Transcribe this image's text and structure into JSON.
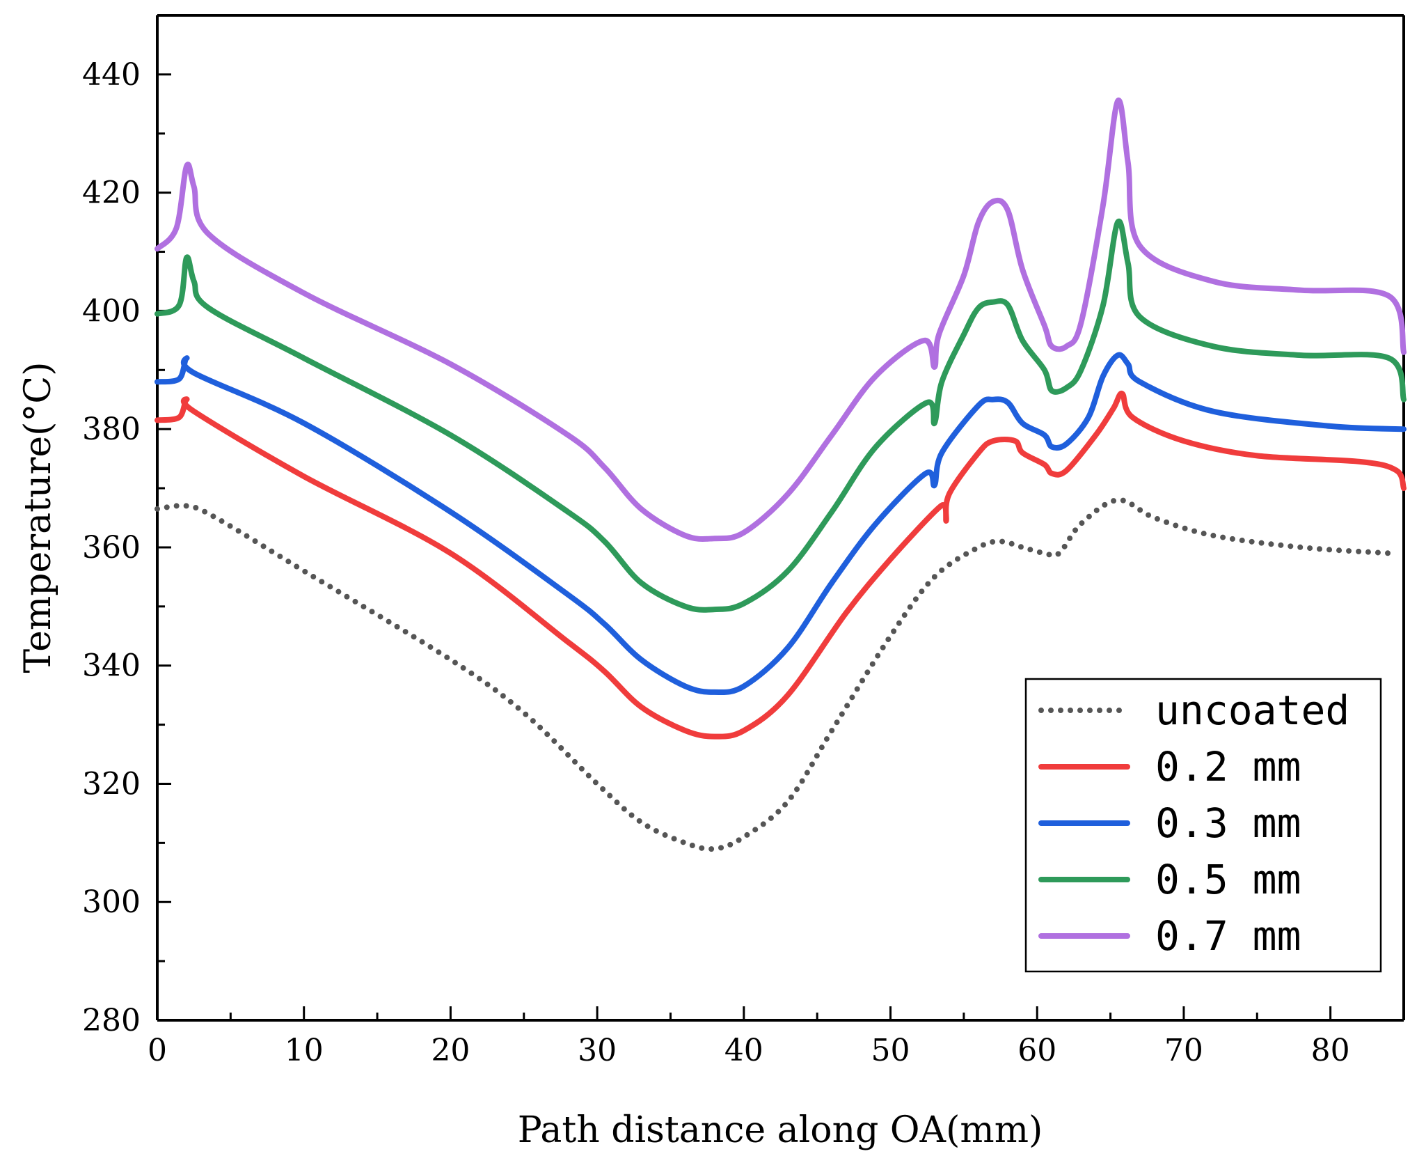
{
  "chart_data": {
    "type": "line",
    "title": "",
    "xlabel": "Path distance along OA(mm)",
    "ylabel": "Temperature(°C)",
    "xlim": [
      0,
      85
    ],
    "ylim": [
      280,
      450
    ],
    "xticks": [
      0,
      10,
      20,
      30,
      40,
      50,
      60,
      70,
      80
    ],
    "yticks": [
      280,
      300,
      320,
      340,
      360,
      380,
      400,
      420,
      440
    ],
    "grid": false,
    "legend_position": "bottom-right",
    "series": [
      {
        "name": "uncoated",
        "color": "#555555",
        "style": "dotted",
        "points": [
          [
            0,
            366.5
          ],
          [
            2,
            367
          ],
          [
            4,
            365
          ],
          [
            10,
            356
          ],
          [
            20,
            341
          ],
          [
            25,
            332
          ],
          [
            30,
            320
          ],
          [
            33,
            313.5
          ],
          [
            36,
            310
          ],
          [
            38,
            309
          ],
          [
            40,
            311
          ],
          [
            43,
            317
          ],
          [
            46,
            329
          ],
          [
            50,
            345
          ],
          [
            53,
            355
          ],
          [
            56,
            360
          ],
          [
            57.5,
            361
          ],
          [
            59,
            360
          ],
          [
            60.5,
            359
          ],
          [
            61.5,
            359
          ],
          [
            63,
            364
          ],
          [
            65.5,
            368
          ],
          [
            68,
            365
          ],
          [
            72,
            362
          ],
          [
            78,
            360
          ],
          [
            84,
            359
          ]
        ]
      },
      {
        "name": "0.2 mm",
        "color": "#f03c3c",
        "style": "solid",
        "points": [
          [
            0,
            381.5
          ],
          [
            1.5,
            382
          ],
          [
            2,
            385
          ],
          [
            2.5,
            383
          ],
          [
            10,
            372
          ],
          [
            20,
            359
          ],
          [
            28,
            344
          ],
          [
            30.5,
            339
          ],
          [
            33,
            333
          ],
          [
            36,
            329
          ],
          [
            38,
            328
          ],
          [
            40,
            329
          ],
          [
            43,
            335
          ],
          [
            47,
            349
          ],
          [
            50,
            358
          ],
          [
            53,
            366
          ],
          [
            53.7,
            367
          ],
          [
            53.8,
            364.5
          ],
          [
            54,
            369
          ],
          [
            56,
            376
          ],
          [
            57,
            378
          ],
          [
            58.5,
            378
          ],
          [
            59,
            376
          ],
          [
            60.5,
            374
          ],
          [
            61,
            372.5
          ],
          [
            62,
            373
          ],
          [
            64,
            379
          ],
          [
            65.2,
            383.5
          ],
          [
            65.8,
            386
          ],
          [
            66.5,
            382
          ],
          [
            70,
            378
          ],
          [
            75,
            375.5
          ],
          [
            82,
            374.5
          ],
          [
            84.5,
            373
          ],
          [
            85,
            370
          ]
        ]
      },
      {
        "name": "0.3 mm",
        "color": "#1f5fdc",
        "style": "solid",
        "points": [
          [
            0,
            388
          ],
          [
            1.5,
            388.5
          ],
          [
            2,
            392
          ],
          [
            2.5,
            389.5
          ],
          [
            10,
            381
          ],
          [
            20,
            366
          ],
          [
            28,
            352
          ],
          [
            30.5,
            347
          ],
          [
            33,
            341
          ],
          [
            36,
            336.5
          ],
          [
            38,
            335.5
          ],
          [
            40,
            336.5
          ],
          [
            43,
            343
          ],
          [
            46,
            354
          ],
          [
            49,
            364
          ],
          [
            52.4,
            372.5
          ],
          [
            53,
            370.5
          ],
          [
            53.5,
            376
          ],
          [
            56,
            384
          ],
          [
            57,
            385
          ],
          [
            58,
            384.5
          ],
          [
            59,
            381
          ],
          [
            60.5,
            379
          ],
          [
            61,
            377
          ],
          [
            62,
            377.5
          ],
          [
            63.5,
            382
          ],
          [
            64.5,
            389
          ],
          [
            65.5,
            392.5
          ],
          [
            66.2,
            391
          ],
          [
            67,
            388
          ],
          [
            72,
            383
          ],
          [
            80,
            380.5
          ],
          [
            85,
            380
          ]
        ]
      },
      {
        "name": "0.5 mm",
        "color": "#2e9a5a",
        "style": "solid",
        "points": [
          [
            0,
            399.5
          ],
          [
            1.5,
            401
          ],
          [
            2,
            409
          ],
          [
            2.5,
            405
          ],
          [
            3.5,
            400.5
          ],
          [
            10,
            392
          ],
          [
            20,
            379
          ],
          [
            28,
            366
          ],
          [
            30.5,
            361
          ],
          [
            33,
            354
          ],
          [
            36,
            350
          ],
          [
            38,
            349.5
          ],
          [
            40,
            350.5
          ],
          [
            43,
            356
          ],
          [
            46,
            366
          ],
          [
            49,
            377
          ],
          [
            52.5,
            384.5
          ],
          [
            53,
            381
          ],
          [
            53.5,
            388
          ],
          [
            55,
            396
          ],
          [
            56,
            400.5
          ],
          [
            57,
            401.5
          ],
          [
            58,
            401
          ],
          [
            59,
            395
          ],
          [
            60.5,
            390
          ],
          [
            61,
            386.5
          ],
          [
            62,
            387
          ],
          [
            63,
            390
          ],
          [
            64.5,
            401
          ],
          [
            65.5,
            415
          ],
          [
            66.2,
            408
          ],
          [
            67,
            399
          ],
          [
            72,
            394
          ],
          [
            78,
            392.5
          ],
          [
            84,
            392
          ],
          [
            85,
            385
          ]
        ]
      },
      {
        "name": "0.7 mm",
        "color": "#b070e0",
        "style": "solid",
        "points": [
          [
            0,
            410.5
          ],
          [
            1.3,
            414
          ],
          [
            2,
            424.5
          ],
          [
            2.5,
            421
          ],
          [
            3.5,
            413
          ],
          [
            10,
            403
          ],
          [
            20,
            391
          ],
          [
            28,
            379
          ],
          [
            30.5,
            373.5
          ],
          [
            33,
            366.5
          ],
          [
            36,
            362
          ],
          [
            38,
            361.5
          ],
          [
            40,
            362.5
          ],
          [
            43,
            369
          ],
          [
            46,
            379
          ],
          [
            49,
            389
          ],
          [
            52.3,
            395
          ],
          [
            53,
            390.5
          ],
          [
            53.3,
            396
          ],
          [
            55,
            406
          ],
          [
            56,
            415
          ],
          [
            57,
            418.5
          ],
          [
            58,
            417
          ],
          [
            59,
            407
          ],
          [
            60.5,
            397.5
          ],
          [
            61,
            394
          ],
          [
            62,
            394
          ],
          [
            63,
            398
          ],
          [
            64.5,
            418
          ],
          [
            65.5,
            435.5
          ],
          [
            66.2,
            425
          ],
          [
            67,
            411
          ],
          [
            72,
            405
          ],
          [
            78,
            403.5
          ],
          [
            84,
            402.5
          ],
          [
            85,
            393
          ]
        ]
      }
    ]
  },
  "legend": {
    "entries": [
      "uncoated",
      "0.2 mm",
      "0.3 mm",
      "0.5 mm",
      "0.7 mm"
    ]
  }
}
